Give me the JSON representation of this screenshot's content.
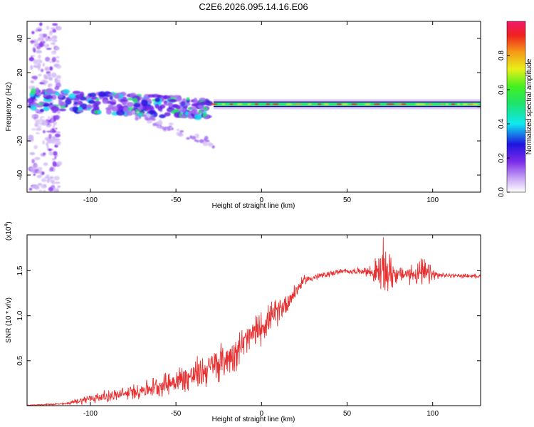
{
  "title": "C2E6.2026.095.14.16.E06",
  "chart_data": [
    {
      "type": "heatmap",
      "name": "spectrogram",
      "xlabel": "Height of straight line (km)",
      "ylabel": "Frequency (Hz)",
      "xlim": [
        -137,
        128
      ],
      "ylim": [
        -50,
        50
      ],
      "xticks": [
        -100,
        -50,
        0,
        50,
        100
      ],
      "yticks": [
        -40,
        -20,
        0,
        20,
        40
      ],
      "colorbar": {
        "label": "Normalized spectral amplitude",
        "range": [
          0,
          1
        ],
        "ticks": [
          "0.0",
          "0.2",
          "0.4",
          "0.6",
          "0.8"
        ],
        "tick_values": [
          0.0,
          0.2,
          0.4,
          0.6,
          0.8
        ]
      },
      "description_of_structure": {
        "noise_band_x": [
          -135,
          -118
        ],
        "scatter_band_x": [
          -135,
          -30
        ],
        "drift_start": {
          "x": -135,
          "freq": 4
        },
        "drift_end": {
          "x": -28,
          "freq": -1
        },
        "steady_line": {
          "x": [
            -28,
            128
          ],
          "freq": 1.5
        },
        "downward_tail": {
          "x": [
            -75,
            -28
          ],
          "freq_end": -22
        }
      }
    },
    {
      "type": "line",
      "name": "snr",
      "xlabel": "Height of straight line (km)",
      "ylabel": "SNR (10 * v/v)",
      "exponent_label": "(x10",
      "exponent_power": "4",
      "exponent_close": ")",
      "color": "#e83030",
      "xlim": [
        -137,
        128
      ],
      "ylim": [
        0,
        19000
      ],
      "xticks": [
        -100,
        -50,
        0,
        50,
        100
      ],
      "yticks": [
        5000,
        10000,
        15000
      ],
      "ytick_labels": [
        "0.5",
        "1.0",
        "1.5"
      ],
      "envelope": [
        {
          "x": -137,
          "y": 50,
          "amp": 20
        },
        {
          "x": -115,
          "y": 200,
          "amp": 150
        },
        {
          "x": -100,
          "y": 800,
          "amp": 700
        },
        {
          "x": -80,
          "y": 1300,
          "amp": 900
        },
        {
          "x": -60,
          "y": 2200,
          "amp": 1400
        },
        {
          "x": -40,
          "y": 3300,
          "amp": 2200
        },
        {
          "x": -20,
          "y": 5200,
          "amp": 2500
        },
        {
          "x": 0,
          "y": 8800,
          "amp": 2200
        },
        {
          "x": 15,
          "y": 11500,
          "amp": 1600
        },
        {
          "x": 25,
          "y": 14000,
          "amp": 600
        },
        {
          "x": 45,
          "y": 14900,
          "amp": 350
        },
        {
          "x": 60,
          "y": 15000,
          "amp": 450
        },
        {
          "x": 65,
          "y": 14800,
          "amp": 1200
        },
        {
          "x": 72,
          "y": 15000,
          "amp": 4200
        },
        {
          "x": 80,
          "y": 14600,
          "amp": 900
        },
        {
          "x": 95,
          "y": 14700,
          "amp": 2000
        },
        {
          "x": 100,
          "y": 14500,
          "amp": 1200
        },
        {
          "x": 105,
          "y": 14500,
          "amp": 300
        },
        {
          "x": 128,
          "y": 14400,
          "amp": 250
        }
      ]
    }
  ]
}
